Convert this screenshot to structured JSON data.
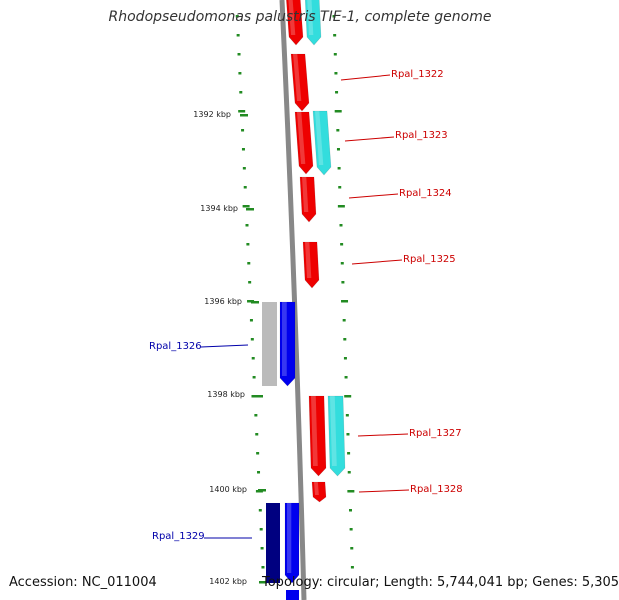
{
  "title": "Rhodopseudomonas palustris TIE-1, complete genome",
  "footer": {
    "accession": "Accession: NC_011004",
    "topology": "Topology: circular; Length: 5,744,041 bp; Genes: 5,305"
  },
  "axis_ticks": [
    "1392 kbp",
    "1394 kbp",
    "1396 kbp",
    "1398 kbp",
    "1400 kbp",
    "1402 kbp"
  ],
  "colors": {
    "backbone": "#888888",
    "forward_gene": "#ee0000",
    "forward_cds": "#33dddd",
    "reverse_gene": "#0000ee",
    "reverse_gene_dark": "#000080",
    "pseudo": "#bbbbbb",
    "tick": "#228b22",
    "label_red": "#cc0000",
    "label_blue": "#0000aa"
  },
  "gene_labels": [
    {
      "text": "Rpal_1322",
      "strand": "forward"
    },
    {
      "text": "Rpal_1323",
      "strand": "forward"
    },
    {
      "text": "Rpal_1324",
      "strand": "forward"
    },
    {
      "text": "Rpal_1325",
      "strand": "forward"
    },
    {
      "text": "Rpal_1326",
      "strand": "reverse"
    },
    {
      "text": "Rpal_1327",
      "strand": "forward"
    },
    {
      "text": "Rpal_1328",
      "strand": "forward"
    },
    {
      "text": "Rpal_1329",
      "strand": "reverse"
    }
  ]
}
